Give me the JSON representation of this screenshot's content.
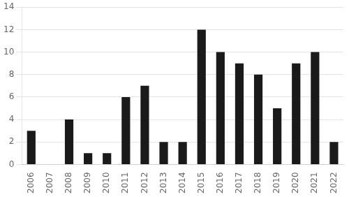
{
  "chart_data": {
    "type": "bar",
    "categories": [
      "2006",
      "2007",
      "2008",
      "2009",
      "2010",
      "2011",
      "2012",
      "2013",
      "2014",
      "2015",
      "2016",
      "2017",
      "2018",
      "2019",
      "2020",
      "2021",
      "2022"
    ],
    "values": [
      3,
      0,
      4,
      1,
      1,
      6,
      7,
      2,
      2,
      12,
      10,
      9,
      8,
      5,
      9,
      10,
      2
    ],
    "color": "#1a1a1a",
    "ylim": [
      0,
      14
    ],
    "yticks": [
      0,
      2,
      4,
      6,
      8,
      10,
      12,
      14
    ],
    "grid": true
  }
}
